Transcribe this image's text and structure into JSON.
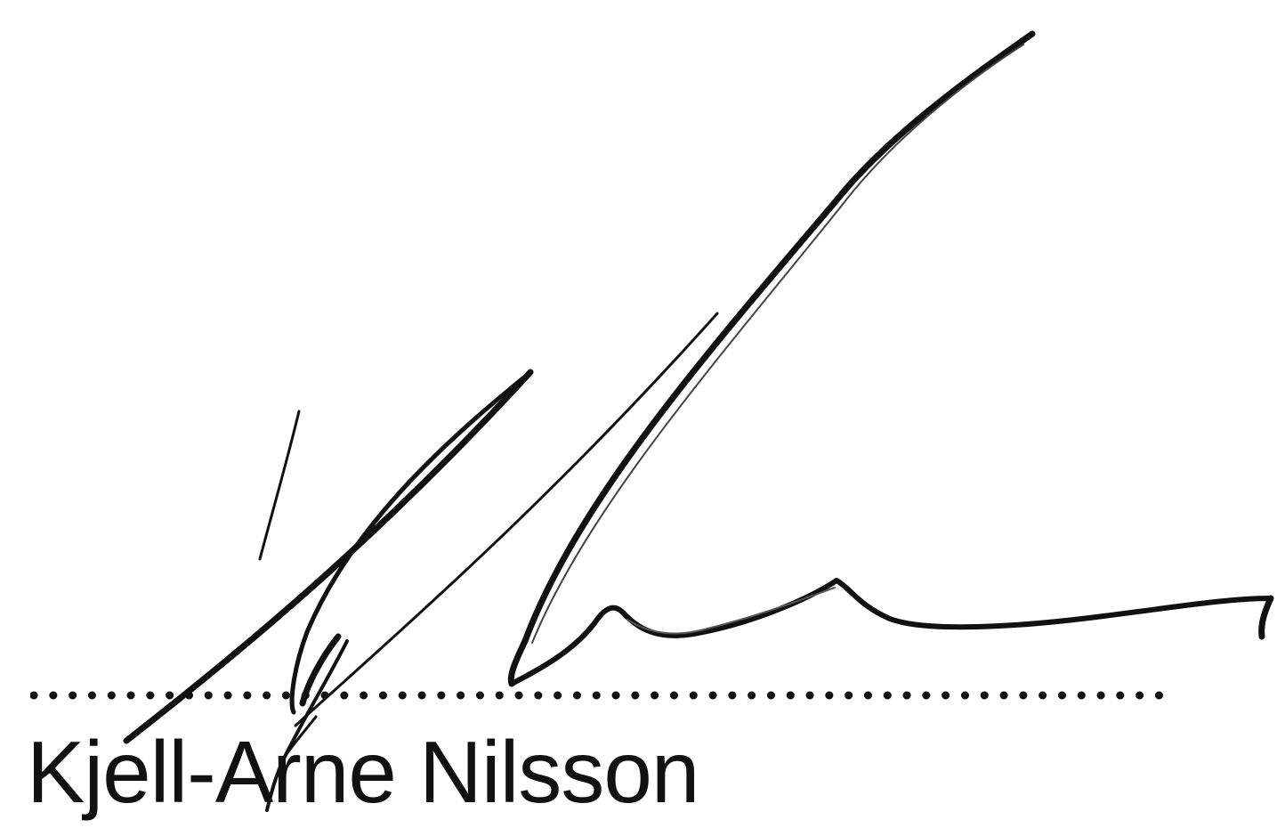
{
  "document": {
    "signer_name": "Kjell-Arne Nilsson"
  },
  "colors": {
    "ink": "#111111",
    "background": "#ffffff"
  }
}
